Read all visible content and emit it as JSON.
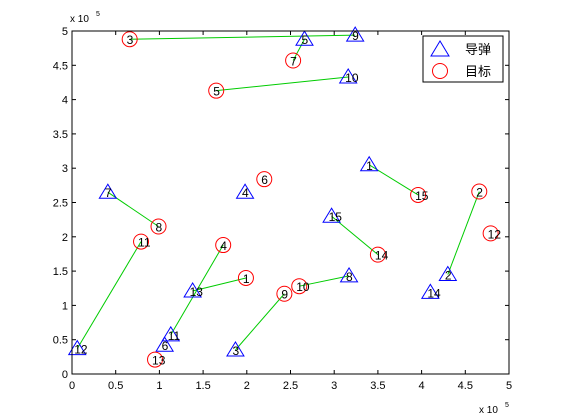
{
  "chart_data": {
    "type": "scatter",
    "title": "",
    "xlabel": "",
    "ylabel": "",
    "x_exponent": "x 10",
    "x_exponent_power": "5",
    "y_exponent": "x 10",
    "y_exponent_power": "5",
    "xlim": [
      0,
      5
    ],
    "ylim": [
      0,
      5
    ],
    "xticks": [
      0,
      0.5,
      1,
      1.5,
      2,
      2.5,
      3,
      3.5,
      4,
      4.5,
      5
    ],
    "yticks": [
      0,
      0.5,
      1,
      1.5,
      2,
      2.5,
      3,
      3.5,
      4,
      4.5,
      5
    ],
    "legend": {
      "position": "top-right",
      "entries": [
        {
          "label": "导弹",
          "marker": "triangle",
          "color": "#0000ff"
        },
        {
          "label": "目标",
          "marker": "circle",
          "color": "#ff0000"
        }
      ]
    },
    "line_color": "#00cc00",
    "missiles": [
      {
        "label": "1",
        "x": 3.4,
        "y": 3.05
      },
      {
        "label": "2",
        "x": 4.3,
        "y": 1.45
      },
      {
        "label": "3",
        "x": 1.87,
        "y": 0.35
      },
      {
        "label": "4",
        "x": 1.98,
        "y": 2.65
      },
      {
        "label": "5",
        "x": 2.66,
        "y": 4.88
      },
      {
        "label": "6",
        "x": 1.06,
        "y": 0.42
      },
      {
        "label": "7",
        "x": 0.41,
        "y": 2.65
      },
      {
        "label": "8",
        "x": 3.17,
        "y": 1.43
      },
      {
        "label": "9",
        "x": 3.24,
        "y": 4.94
      },
      {
        "label": "10",
        "x": 3.16,
        "y": 4.33
      },
      {
        "label": "11",
        "x": 1.13,
        "y": 0.57
      },
      {
        "label": "12",
        "x": 0.06,
        "y": 0.37
      },
      {
        "label": "13",
        "x": 1.38,
        "y": 1.21
      },
      {
        "label": "14",
        "x": 4.1,
        "y": 1.19
      },
      {
        "label": "15",
        "x": 2.97,
        "y": 2.3
      }
    ],
    "targets": [
      {
        "label": "1",
        "x": 1.99,
        "y": 1.4
      },
      {
        "label": "2",
        "x": 4.66,
        "y": 2.66
      },
      {
        "label": "3",
        "x": 0.66,
        "y": 4.88
      },
      {
        "label": "4",
        "x": 1.73,
        "y": 1.88
      },
      {
        "label": "5",
        "x": 1.65,
        "y": 4.13
      },
      {
        "label": "6",
        "x": 2.2,
        "y": 2.84
      },
      {
        "label": "7",
        "x": 2.53,
        "y": 4.57
      },
      {
        "label": "8",
        "x": 0.99,
        "y": 2.15
      },
      {
        "label": "9",
        "x": 2.43,
        "y": 1.17
      },
      {
        "label": "10",
        "x": 2.6,
        "y": 1.28
      },
      {
        "label": "11",
        "x": 0.79,
        "y": 1.93
      },
      {
        "label": "12",
        "x": 4.79,
        "y": 2.05
      },
      {
        "label": "13",
        "x": 0.95,
        "y": 0.21
      },
      {
        "label": "14",
        "x": 3.5,
        "y": 1.74
      },
      {
        "label": "15",
        "x": 3.96,
        "y": 2.61
      }
    ],
    "assignments": [
      {
        "missile": "1",
        "target": "15"
      },
      {
        "missile": "2",
        "target": "2"
      },
      {
        "missile": "3",
        "target": "9"
      },
      {
        "missile": "5",
        "target": "7"
      },
      {
        "missile": "7",
        "target": "8"
      },
      {
        "missile": "8",
        "target": "10"
      },
      {
        "missile": "9",
        "target": "3"
      },
      {
        "missile": "10",
        "target": "5"
      },
      {
        "missile": "11",
        "target": "4"
      },
      {
        "missile": "12",
        "target": "11"
      },
      {
        "missile": "13",
        "target": "1"
      },
      {
        "missile": "15",
        "target": "14"
      }
    ]
  }
}
